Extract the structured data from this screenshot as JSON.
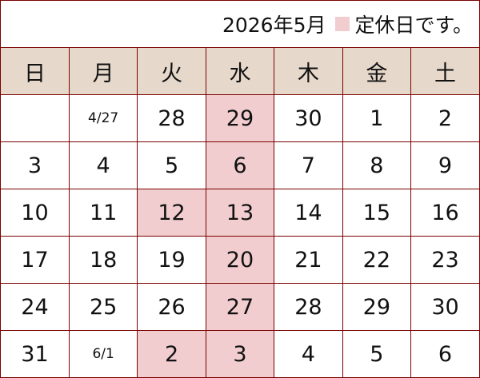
{
  "title": {
    "month": "2026年5月",
    "legend": "定休日です。"
  },
  "colors": {
    "closed": "#f2cdd0",
    "header": "#e6d8cb",
    "border": "#7a0000"
  },
  "weekdays": [
    "日",
    "月",
    "火",
    "水",
    "木",
    "金",
    "土"
  ],
  "weeks": [
    [
      {
        "d": ""
      },
      {
        "d": "4/27",
        "small": true
      },
      {
        "d": "28"
      },
      {
        "d": "29",
        "closed": true
      },
      {
        "d": "30"
      },
      {
        "d": "1"
      },
      {
        "d": "2"
      }
    ],
    [
      {
        "d": "3"
      },
      {
        "d": "4"
      },
      {
        "d": "5"
      },
      {
        "d": "6",
        "closed": true
      },
      {
        "d": "7"
      },
      {
        "d": "8"
      },
      {
        "d": "9"
      }
    ],
    [
      {
        "d": "10"
      },
      {
        "d": "11"
      },
      {
        "d": "12",
        "closed": true
      },
      {
        "d": "13",
        "closed": true
      },
      {
        "d": "14"
      },
      {
        "d": "15"
      },
      {
        "d": "16"
      }
    ],
    [
      {
        "d": "17"
      },
      {
        "d": "18"
      },
      {
        "d": "19"
      },
      {
        "d": "20",
        "closed": true
      },
      {
        "d": "21"
      },
      {
        "d": "22"
      },
      {
        "d": "23"
      }
    ],
    [
      {
        "d": "24"
      },
      {
        "d": "25"
      },
      {
        "d": "26"
      },
      {
        "d": "27",
        "closed": true
      },
      {
        "d": "28"
      },
      {
        "d": "29"
      },
      {
        "d": "30"
      }
    ],
    [
      {
        "d": "31"
      },
      {
        "d": "6/1",
        "small": true
      },
      {
        "d": "2",
        "closed": true
      },
      {
        "d": "3",
        "closed": true
      },
      {
        "d": "4"
      },
      {
        "d": "5"
      },
      {
        "d": "6"
      }
    ]
  ]
}
